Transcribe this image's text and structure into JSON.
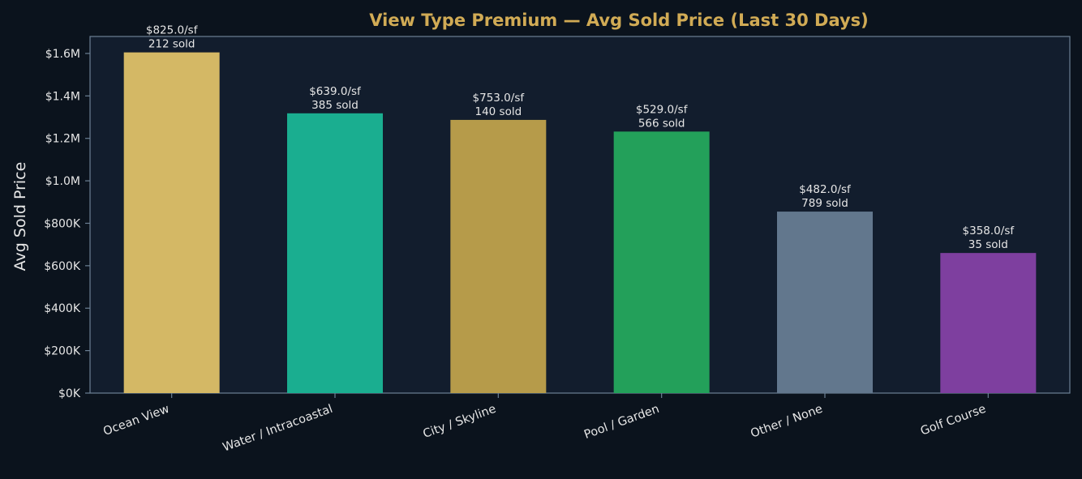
{
  "chart_data": {
    "type": "bar",
    "title": "View Type Premium — Avg Sold Price (Last 30 Days)",
    "xlabel": "",
    "ylabel": "Avg Sold Price",
    "ylim": [
      0,
      1680000
    ],
    "yticks": [
      {
        "value": 0,
        "label": "$0K"
      },
      {
        "value": 200000,
        "label": "$200K"
      },
      {
        "value": 400000,
        "label": "$400K"
      },
      {
        "value": 600000,
        "label": "$600K"
      },
      {
        "value": 800000,
        "label": "$800K"
      },
      {
        "value": 1000000,
        "label": "$1.0M"
      },
      {
        "value": 1200000,
        "label": "$1.2M"
      },
      {
        "value": 1400000,
        "label": "$1.4M"
      },
      {
        "value": 1600000,
        "label": "$1.6M"
      }
    ],
    "grid": false,
    "legend": "none",
    "categories": [
      "Ocean View",
      "Water / Intracoastal",
      "City / Skyline",
      "Pool / Garden",
      "Other / None",
      "Golf Course"
    ],
    "values": [
      1605000,
      1318000,
      1287000,
      1232000,
      855000,
      660000
    ],
    "bar_labels": [
      [
        "$825.0/sf",
        "212 sold"
      ],
      [
        "$639.0/sf",
        "385 sold"
      ],
      [
        "$753.0/sf",
        "140 sold"
      ],
      [
        "$529.0/sf",
        "566 sold"
      ],
      [
        "$482.0/sf",
        "789 sold"
      ],
      [
        "$358.0/sf",
        "35 sold"
      ]
    ],
    "colors": [
      "#d4b865",
      "#1aae90",
      "#b69b4a",
      "#23a05a",
      "#62778d",
      "#7e3f9f"
    ],
    "style": {
      "background": "#0b131d",
      "plot_background": "#121d2d",
      "axis_color": "#6c8094",
      "title_color": "#d1ab55",
      "text_color": "#e6e6e6"
    }
  }
}
